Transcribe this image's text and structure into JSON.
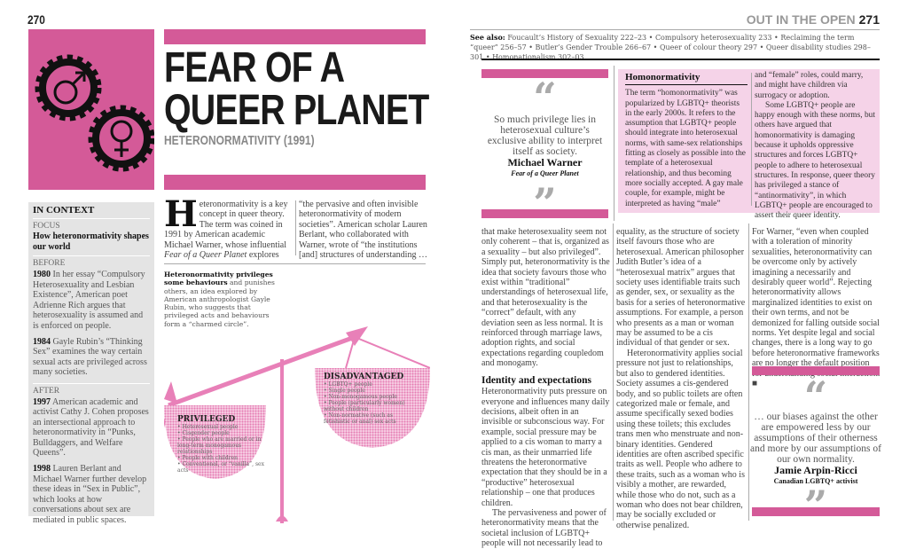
{
  "left_page": {
    "page_number": "270",
    "title_line1": "FEAR OF A",
    "title_line2": "QUEER PLANET",
    "subtitle": "HETERONORMATIVITY (1991)",
    "in_context": {
      "heading": "IN CONTEXT",
      "focus_label": "FOCUS",
      "focus": "How heteronormativity shapes our world",
      "before_label": "BEFORE",
      "before": [
        {
          "year": "1980",
          "text": " In her essay “Compulsory Heterosexuality and Lesbian Existence”, American poet Adrienne Rich argues that heterosexuality is assumed and is enforced on people."
        },
        {
          "year": "1984",
          "text": " Gayle Rubin’s “Thinking Sex” examines the way certain sexual acts are privileged across many societies."
        }
      ],
      "after_label": "AFTER",
      "after": [
        {
          "year": "1997",
          "text": " American academic and activist Cathy J. Cohen proposes an intersectional approach to heteronormativity in “Punks, Bulldaggers, and Welfare Queens”."
        },
        {
          "year": "1998",
          "text": " Lauren Berlant and Michael Warner further develop these ideas in “Sex in Public”, which looks at how conversations about sex are mediated in public spaces."
        }
      ]
    },
    "intro": {
      "dropcap": "H",
      "col1_a": "eteronormativity is a key concept in queer theory. The term was coined in 1991 by American academic Michael Warner, whose influential ",
      "col1_italic": "Fear of a Queer Planet",
      "col1_b": " explores",
      "col2": "“the pervasive and often invisible heteronormativity of modern societies”. American scholar Lauren Berlant, who collaborated with Warner, wrote of “the institutions [and] structures of understanding …"
    },
    "caption_bold": "Heteronormativity privileges some behaviours",
    "caption": " and punishes others, an idea explored by American anthropologist Gayle Rubin, who suggests that privileged acts and behaviours form a “charmed circle”.",
    "scale": {
      "privileged_label": "PRIVILEGED",
      "privileged": [
        "Heterosexual people",
        "Cisgender people",
        "People who are married or in long-term monogamous relationships",
        "People with children",
        "Conventional, or “vanilla”, sex acts"
      ],
      "disadvantaged_label": "DISADVANTAGED",
      "disadvantaged": [
        "LGBTQ+ people",
        "Single people",
        "Non-monogamous people",
        "People (particularly women) without children",
        "Non-normative (such as fetishistic or anal) sex acts"
      ]
    }
  },
  "right_page": {
    "running_head": "OUT IN THE OPEN",
    "page_number": "271",
    "see_also_label": "See also:",
    "see_also": "Foucault’s History of Sexuality 222–23 • Compulsory heterosexuality 233 • Reclaiming the term “queer” 256–57 • Butler’s Gender Trouble 266–67 • Queer of colour theory 297 • Queer disability studies 298–301 • Homonationalism 302–03",
    "quote1": {
      "text": "So much privilege lies in heterosexual culture’s exclusive ability to interpret itself as society.",
      "author": "Michael Warner",
      "source": "Fear of a Queer Planet"
    },
    "sidebar": {
      "heading": "Homonormativity",
      "col1": "The term “homonormativity” was popularized by LGBTQ+ theorists in the early 2000s. It refers to the assumption that LGBTQ+ people should integrate into heterosexual norms, with same-sex relationships fitting as closely as possible into the template of a heterosexual relationship, and thus becoming more socially accepted. A gay male couple, for example, might be interpreted as having “male”",
      "col2_p1": "and “female” roles, could marry, and might have children via surrogacy or adoption.",
      "col2_p2": "Some LGBTQ+ people are happy enough with these norms, but others have argued that homonormativity is damaging because it upholds oppressive structures and forces LGBTQ+ people to adhere to heterosexual structures. In response, queer theory has privileged a stance of “antinormativity”, in which LGBTQ+ people are encouraged to assert their queer identity."
    },
    "col1_p1": "that make heterosexuality seem not only coherent – that is, organized as a sexuality – but also privileged”. Simply put, heteronormativity is the idea that society favours those who exist within “traditional” understandings of heterosexual life, and that heterosexuality is the “correct” default, with any deviation seen as less normal. It is reinforced through marriage laws, adoption rights, and social expectations regarding coupledom and monogamy.",
    "subheading": "Identity and expectations",
    "col1_p2": "Heteronormativity puts pressure on everyone and influences many daily decisions, albeit often in an invisible or subconscious way. For example, social pressure may be applied to a cis woman to marry a cis man, as their unmarried life threatens the heteronormative expectation that they should be in a “productive” heterosexual relationship – one that produces children.",
    "col1_p3": "The pervasiveness and power of heteronormativity means that the societal inclusion of LGBTQ+ people will not necessarily lead to",
    "col2_p1": "equality, as the structure of society itself favours those who are heterosexual. American philosopher Judith Butler’s idea of a “heterosexual matrix” argues that society uses identifiable traits such as gender, sex, or sexuality as the basis for a series of heteronormative assumptions. For example, a person who presents as a man or woman may be assumed to be a cis individual of that gender or sex.",
    "col2_p2": "Heteronormativity applies social pressure not just to relationships, but also to gendered identities. Society assumes a cis-gendered body, and so public toilets are often categorized male or female, and assume specifically sexed bodies using these toilets; this excludes trans men who menstruate and non-binary identities. Gendered identities are often ascribed specific traits as well. People who adhere to these traits, such as a woman who is visibly a mother, are rewarded, while those who do not, such as a woman who does not bear children, may be socially excluded or otherwise penalized.",
    "col3": "For Warner, “even when coupled with a toleration of minority sexualities, heteronormativity can be overcome only by actively imagining a necessarily and desirably queer world”. Rejecting heteronormativity allows marginalized identities to exist on their own terms, and not be demonized for falling outside social norms. Yet despite legal and social changes, there is a long way to go before heteronormative frameworks are no longer the default position for understanding social interaction. ■",
    "quote2": {
      "text": "… our biases against the other are empowered less by our assumptions of their otherness and more by our assumptions of our own normality.",
      "author": "Jamie Arpin-Ricci",
      "source": "Canadian LGBTQ+ activist"
    }
  },
  "colors": {
    "accent": "#d45a98",
    "sidebar_bg": "#f5d3e8",
    "context_bg": "#e4e4e4"
  }
}
